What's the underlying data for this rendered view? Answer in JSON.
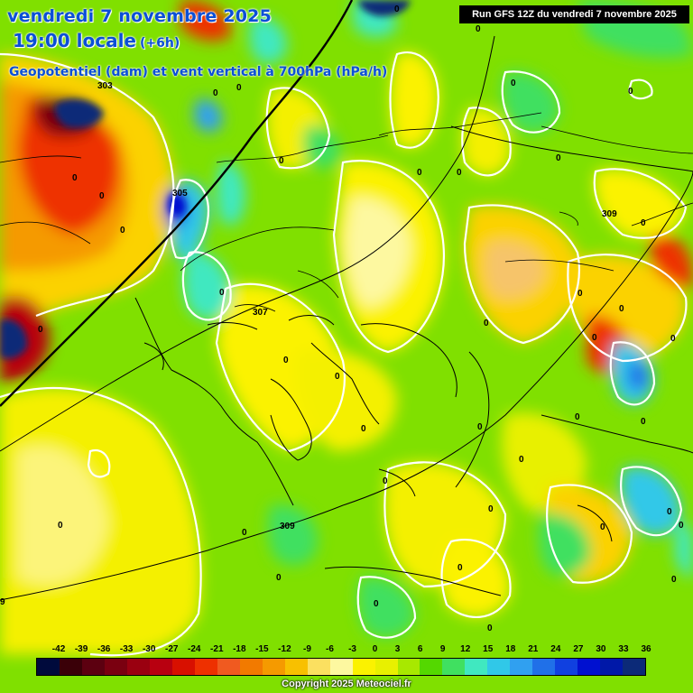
{
  "header": {
    "date": "vendredi 7 novembre 2025",
    "time": "19:00 locale",
    "offset": "(+6h)",
    "parameter": "Geopotentiel (dam) et vent vertical à 700hPa (hPa/h)",
    "run": "Run GFS 12Z du vendredi 7 novembre 2025"
  },
  "footer": {
    "copyright": "Copyright 2025 Meteociel.fr"
  },
  "legend": {
    "labels": [
      "-42",
      "-39",
      "-36",
      "-33",
      "-30",
      "-27",
      "-24",
      "-21",
      "-18",
      "-15",
      "-12",
      "-9",
      "-6",
      "-3",
      "0",
      "3",
      "6",
      "9",
      "12",
      "15",
      "18",
      "21",
      "24",
      "27",
      "30",
      "33",
      "36"
    ],
    "colors": [
      "#000a3c",
      "#3a0008",
      "#5c0010",
      "#7a0010",
      "#9a0010",
      "#b80010",
      "#d81000",
      "#ee3000",
      "#f05a20",
      "#f27a00",
      "#f59a00",
      "#f8c000",
      "#fbe060",
      "#fdf8a0",
      "#fbf200",
      "#e8f000",
      "#a8e800",
      "#54d800",
      "#40e060",
      "#40e8c0",
      "#30c8e8",
      "#30a0f0",
      "#2070e8",
      "#1040e0",
      "#0010d0",
      "#0018a8",
      "#0c2a78"
    ]
  },
  "contours": {
    "geopotential": [
      "303",
      "305",
      "307",
      "309"
    ],
    "vertical_wind_zero": "0"
  },
  "map_labels": [
    {
      "text": "303"
    },
    {
      "text": "305"
    },
    {
      "text": "307"
    },
    {
      "text": "309"
    },
    {
      "text": "309"
    },
    {
      "text": "9"
    },
    {
      "text": "0"
    },
    {
      "text": "0"
    },
    {
      "text": "0"
    },
    {
      "text": "0"
    },
    {
      "text": "0"
    },
    {
      "text": "0"
    },
    {
      "text": "0"
    },
    {
      "text": "0"
    },
    {
      "text": "0"
    },
    {
      "text": "0"
    },
    {
      "text": "0"
    },
    {
      "text": "0"
    },
    {
      "text": "0"
    },
    {
      "text": "0"
    },
    {
      "text": "0"
    },
    {
      "text": "0"
    },
    {
      "text": "0"
    },
    {
      "text": "0"
    },
    {
      "text": "0"
    },
    {
      "text": "0"
    },
    {
      "text": "0"
    },
    {
      "text": "0"
    },
    {
      "text": "0"
    },
    {
      "text": "0"
    },
    {
      "text": "0"
    },
    {
      "text": "0"
    },
    {
      "text": "0"
    },
    {
      "text": "0"
    },
    {
      "text": "0"
    },
    {
      "text": "0"
    },
    {
      "text": "0"
    },
    {
      "text": "0"
    },
    {
      "text": "0"
    },
    {
      "text": "0"
    },
    {
      "text": "0"
    },
    {
      "text": "0"
    },
    {
      "text": "0"
    },
    {
      "text": "0"
    },
    {
      "text": "0"
    },
    {
      "text": "0"
    }
  ],
  "colors": {
    "title": "#0b4fd6",
    "field_base": "#80e000",
    "contour_zero": "#ffffff",
    "geopotential_line": "#000000"
  }
}
